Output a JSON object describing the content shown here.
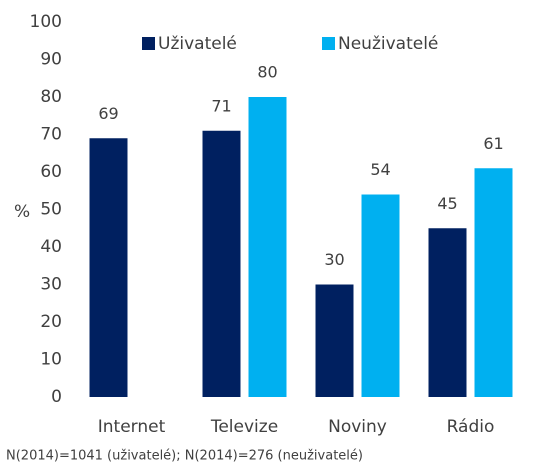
{
  "chart_data": {
    "type": "bar",
    "categories": [
      "Internet",
      "Televize",
      "Noviny",
      "Rádio"
    ],
    "series": [
      {
        "name": "Uživatelé",
        "color": "#002060",
        "values": [
          69,
          71,
          30,
          45
        ]
      },
      {
        "name": "Neuživatelé",
        "color": "#00b0f0",
        "values": [
          null,
          80,
          54,
          61
        ]
      }
    ],
    "ylabel": "%",
    "ylim": [
      0,
      100
    ],
    "yticks": [
      0,
      10,
      20,
      30,
      40,
      50,
      60,
      70,
      80,
      90,
      100
    ],
    "legend": "top",
    "footnote": "N(2014)=1041 (uživatelé); N(2014)=276 (neuživatelé)"
  }
}
